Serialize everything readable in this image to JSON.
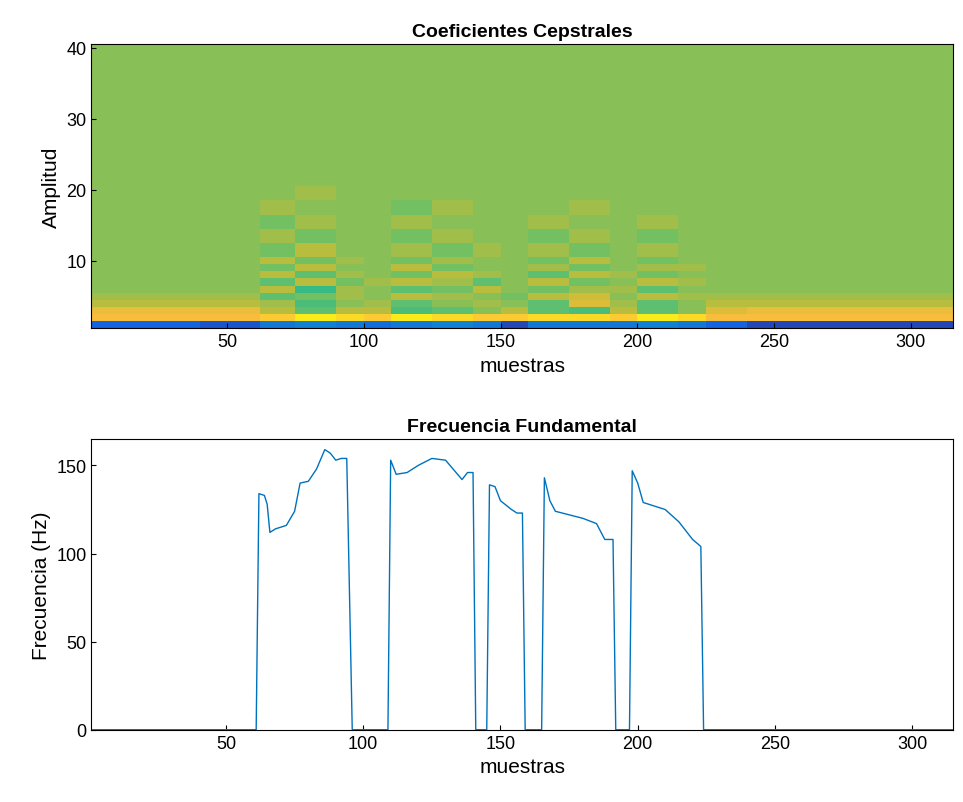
{
  "chart_data": [
    {
      "type": "heatmap",
      "title": "Coeficientes Cepstrales",
      "x_label": "muestras",
      "y_label": "Amplitud",
      "x_edges": [
        0.5,
        20,
        40,
        62,
        75,
        90,
        100,
        110,
        125,
        140,
        150,
        160,
        175,
        190,
        200,
        215,
        225,
        240,
        260,
        280,
        315.5
      ],
      "y_edges": [
        0.5,
        1.5,
        2.5,
        3.5,
        4.5,
        5.5,
        6.5,
        7.5,
        8.5,
        9.5,
        10.5,
        12.5,
        14.5,
        16.5,
        18.5,
        20.5,
        25.5,
        30.5,
        35.5,
        40.5
      ],
      "cells": [
        [
          -8,
          -8,
          -8.5,
          -7,
          -6.5,
          -7,
          -7.5,
          -7,
          -6.5,
          -7,
          -9,
          -7,
          -7,
          -7,
          -6.5,
          -7,
          -8,
          -9,
          -9,
          -9
        ],
        [
          3,
          3,
          3,
          3.5,
          4.5,
          4,
          3.5,
          4.5,
          4,
          3.5,
          3.5,
          4,
          4,
          3.5,
          4.5,
          4,
          3,
          3,
          3,
          3
        ],
        [
          2.5,
          2.5,
          2.5,
          1,
          -1,
          1,
          1,
          -1.5,
          -1,
          0,
          1,
          -1,
          -1.5,
          1,
          -1,
          0,
          2,
          2.5,
          2.5,
          2.5
        ],
        [
          1,
          1,
          1,
          0.5,
          -1.5,
          0,
          0.5,
          -1,
          0,
          0.5,
          0,
          -1,
          2,
          0.5,
          -1,
          0,
          1,
          1,
          1,
          1
        ],
        [
          0.5,
          0.5,
          0.5,
          -1,
          -0.5,
          0.5,
          0,
          1,
          0.5,
          0,
          -0.5,
          1,
          1.5,
          0,
          1,
          0.5,
          0.5,
          0.5,
          0.5,
          0.5
        ],
        [
          0,
          0,
          0,
          1,
          -2,
          0.5,
          0,
          -1,
          -0.5,
          1,
          0,
          -0.5,
          0.5,
          0.5,
          -1,
          0,
          0,
          0,
          0,
          0
        ],
        [
          0,
          0,
          0,
          -1,
          1,
          -0.5,
          0.5,
          1,
          0.5,
          -1,
          0,
          1,
          -0.5,
          0,
          1,
          0.5,
          0,
          0,
          0,
          0
        ],
        [
          0,
          0,
          0,
          1,
          -1,
          0.5,
          0,
          -0.5,
          1,
          0.5,
          0,
          -1,
          1,
          0.5,
          -0.5,
          0,
          0,
          0,
          0,
          0
        ],
        [
          0,
          0,
          0,
          -0.5,
          1,
          0,
          0,
          1,
          -0.5,
          0,
          0,
          0.5,
          -0.5,
          0,
          0.5,
          0.5,
          0,
          0,
          0,
          0
        ],
        [
          0,
          0,
          0,
          1,
          -0.5,
          0.5,
          0,
          -0.5,
          0.5,
          0,
          0,
          -0.5,
          1,
          0,
          -0.5,
          0,
          0,
          0,
          0,
          0
        ],
        [
          0,
          0,
          0,
          -0.5,
          1,
          0,
          0,
          0.5,
          -0.5,
          0.5,
          0,
          0.5,
          -0.5,
          0,
          0.5,
          0,
          0,
          0,
          0,
          0
        ],
        [
          0,
          0,
          0,
          0.5,
          -0.5,
          0,
          0,
          -0.5,
          0.5,
          0,
          0,
          -0.5,
          0.5,
          0,
          -0.5,
          0,
          0,
          0,
          0,
          0
        ],
        [
          0,
          0,
          0,
          -0.5,
          0.5,
          0,
          0,
          0.5,
          0,
          0,
          0,
          0.5,
          0,
          0,
          0.5,
          0,
          0,
          0,
          0,
          0
        ],
        [
          0,
          0,
          0,
          0.5,
          0,
          0,
          0,
          -0.5,
          0.5,
          0,
          0,
          0,
          0.5,
          0,
          0,
          0,
          0,
          0,
          0,
          0
        ],
        [
          0,
          0,
          0,
          0,
          0.5,
          0,
          0,
          0,
          0,
          0,
          0,
          0,
          0,
          0,
          0,
          0,
          0,
          0,
          0,
          0
        ],
        [
          0,
          0,
          0,
          0,
          0,
          0,
          0,
          0,
          0,
          0,
          0,
          0,
          0,
          0,
          0,
          0,
          0,
          0,
          0,
          0
        ],
        [
          0,
          0,
          0,
          0,
          0,
          0,
          0,
          0,
          0,
          0,
          0,
          0,
          0,
          0,
          0,
          0,
          0,
          0,
          0,
          0
        ],
        [
          0,
          0,
          0,
          0,
          0,
          0,
          0,
          0,
          0,
          0,
          0,
          0,
          0,
          0,
          0,
          0,
          0,
          0,
          0,
          0
        ],
        [
          0,
          0,
          0,
          0,
          0,
          0,
          0,
          0,
          0,
          0,
          0,
          0,
          0,
          0,
          0,
          0,
          0,
          0,
          0,
          0
        ]
      ],
      "color_range": [
        -10,
        5
      ],
      "xlim": [
        0.5,
        315.5
      ],
      "ylim": [
        0.5,
        40.5
      ],
      "xticks": [
        50,
        100,
        150,
        200,
        250,
        300
      ],
      "yticks": [
        10,
        20,
        30,
        40
      ],
      "grid": false
    },
    {
      "type": "line",
      "title": "Frecuencia Fundamental",
      "x_label": "muestras",
      "y_label": "Frecuencia (Hz)",
      "color": "#0072bd",
      "x": [
        1,
        61,
        62,
        64,
        65,
        66,
        68,
        72,
        75,
        77,
        80,
        83,
        86,
        88,
        90,
        92,
        94,
        96,
        109,
        110,
        112,
        116,
        120,
        125,
        130,
        136,
        138,
        140,
        141,
        145,
        146,
        148,
        150,
        154,
        156,
        158,
        159,
        165,
        166,
        168,
        170,
        175,
        180,
        185,
        188,
        191,
        192,
        197,
        198,
        200,
        202,
        206,
        210,
        215,
        220,
        223,
        224,
        315
      ],
      "values": [
        0,
        0,
        134,
        133,
        128,
        112,
        114,
        116,
        124,
        140,
        141,
        148,
        159,
        157,
        153,
        154,
        154,
        0,
        0,
        153,
        145,
        146,
        150,
        154,
        153,
        142,
        146,
        146,
        0,
        0,
        139,
        138,
        130,
        125,
        123,
        123,
        0,
        0,
        143,
        130,
        124,
        122,
        120,
        117,
        108,
        108,
        0,
        0,
        147,
        140,
        129,
        127,
        125,
        118,
        108,
        104,
        0,
        0
      ],
      "xlim": [
        1,
        315
      ],
      "ylim": [
        0,
        165
      ],
      "xticks": [
        50,
        100,
        150,
        200,
        250,
        300
      ],
      "yticks": [
        0,
        50,
        100,
        150
      ],
      "grid": false
    }
  ]
}
